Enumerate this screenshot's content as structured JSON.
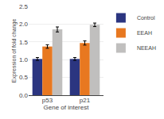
{
  "chart_data": {
    "type": "bar",
    "categories": [
      "p53",
      "p21"
    ],
    "series": [
      {
        "name": "Control",
        "color": "#2b3580",
        "values": [
          1.02,
          1.02
        ],
        "errors": [
          0.04,
          0.04
        ]
      },
      {
        "name": "EEAH",
        "color": "#e87820",
        "values": [
          1.37,
          1.47
        ],
        "errors": [
          0.05,
          0.06
        ]
      },
      {
        "name": "NEEAH",
        "color": "#c0bfbe",
        "values": [
          1.85,
          1.98
        ],
        "errors": [
          0.07,
          0.05
        ]
      }
    ],
    "xlabel": "Gene of interest",
    "ylabel": "Expression of fold change",
    "ylim": [
      0,
      2.5
    ],
    "yticks": [
      {
        "value": 0,
        "label": "0.0"
      },
      0.5,
      {
        "value": 1.0,
        "label": "1.0"
      },
      1.5,
      {
        "value": 2.0,
        "label": "2.0"
      },
      2.5
    ],
    "grid": true,
    "legend": "upper right"
  }
}
